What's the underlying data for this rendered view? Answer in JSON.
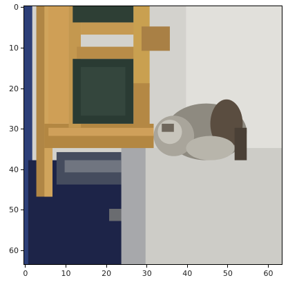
{
  "image": {
    "subject": "",
    "colors": {
      "wood": "#b38742",
      "wood_light": "#d1a35a",
      "dark_window": "#2a3b33",
      "navy": "#1b2446",
      "floor": "#d2d1cc",
      "floor_light": "#e2e1dc",
      "cat_body": "#8e8a80",
      "cat_dark": "#4a4036",
      "cat_light": "#c9c6bd",
      "frame": "#000000"
    }
  },
  "axes": {
    "xlim": [
      -0.5,
      63.5
    ],
    "ylim": [
      63.5,
      -0.5
    ],
    "x_ticks": [
      "0",
      "10",
      "20",
      "30",
      "40",
      "50",
      "60"
    ],
    "y_ticks": [
      "0",
      "10",
      "20",
      "30",
      "40",
      "50",
      "60"
    ]
  }
}
